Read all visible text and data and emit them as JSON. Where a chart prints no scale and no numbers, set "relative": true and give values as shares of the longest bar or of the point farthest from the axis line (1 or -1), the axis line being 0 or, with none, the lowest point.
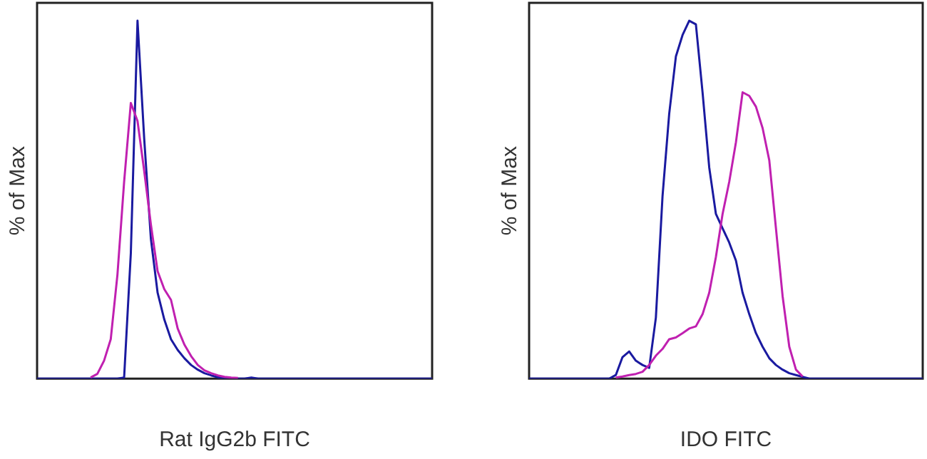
{
  "chart_data": [
    {
      "type": "line",
      "relative": true,
      "xlabel": "Rat IgG2b FITC",
      "ylabel": "% of Max",
      "grid": false,
      "legend": false,
      "marker": "none",
      "line_style": "solid",
      "categories": [
        null,
        null,
        null,
        null,
        null,
        null,
        null,
        null,
        null,
        null,
        null,
        null,
        null,
        null,
        null,
        null,
        null,
        null,
        null,
        null,
        null,
        null,
        null,
        null,
        null,
        null,
        null,
        null,
        null,
        null,
        null,
        null,
        null,
        null,
        null,
        null,
        null,
        null,
        null,
        null,
        null,
        null,
        null,
        null,
        null,
        null,
        null,
        null,
        null,
        null,
        null,
        null,
        null,
        null,
        null,
        null,
        null,
        null,
        null,
        null
      ],
      "series": [
        {
          "color": "#c020b0",
          "values": [
            null,
            null,
            null,
            null,
            null,
            null,
            null,
            null,
            0.003,
            0.013,
            0.05,
            0.11,
            0.29,
            0.55,
            0.77,
            0.72,
            0.58,
            0.43,
            0.3,
            0.25,
            0.22,
            0.14,
            0.095,
            0.063,
            0.038,
            0.023,
            0.015,
            0.009,
            0.005,
            0.003,
            0.002,
            null,
            null,
            null,
            null,
            null,
            null,
            null,
            null,
            null,
            null,
            null,
            null,
            null,
            null,
            null,
            null,
            null,
            null,
            null,
            null,
            null,
            null,
            null,
            null,
            null,
            null,
            null,
            null,
            null
          ]
        },
        {
          "color": "#1a1aa0",
          "values": [
            0,
            0,
            0,
            0,
            0,
            0,
            0,
            0,
            0,
            0,
            0,
            0,
            0,
            0.003,
            0.35,
            1,
            0.67,
            0.39,
            0.24,
            0.165,
            0.11,
            0.08,
            0.057,
            0.038,
            0.025,
            0.015,
            0.009,
            0.004,
            0,
            0,
            0,
            0,
            0.003,
            0,
            0,
            0,
            0,
            0,
            0,
            0,
            0,
            0,
            0,
            0,
            0,
            0,
            0,
            0,
            0,
            0,
            0,
            0,
            0,
            0,
            0,
            0,
            0,
            0,
            0,
            0
          ]
        }
      ]
    },
    {
      "type": "line",
      "relative": true,
      "xlabel": "IDO FITC",
      "ylabel": "% of Max",
      "grid": false,
      "legend": false,
      "marker": "none",
      "line_style": "solid",
      "categories": [
        null,
        null,
        null,
        null,
        null,
        null,
        null,
        null,
        null,
        null,
        null,
        null,
        null,
        null,
        null,
        null,
        null,
        null,
        null,
        null,
        null,
        null,
        null,
        null,
        null,
        null,
        null,
        null,
        null,
        null,
        null,
        null,
        null,
        null,
        null,
        null,
        null,
        null,
        null,
        null,
        null,
        null,
        null,
        null,
        null,
        null,
        null,
        null,
        null,
        null,
        null,
        null,
        null,
        null,
        null,
        null,
        null,
        null,
        null,
        null
      ],
      "series": [
        {
          "color": "#c020b0",
          "values": [
            null,
            null,
            null,
            null,
            null,
            null,
            null,
            null,
            null,
            null,
            null,
            null,
            null,
            0.003,
            0.006,
            0.01,
            0.013,
            0.019,
            0.038,
            0.064,
            0.083,
            0.11,
            0.115,
            0.127,
            0.14,
            0.146,
            0.18,
            0.24,
            0.34,
            0.46,
            0.55,
            0.66,
            0.8,
            0.79,
            0.76,
            0.7,
            0.61,
            0.42,
            0.23,
            0.089,
            0.025,
            0.006,
            null,
            null,
            null,
            null,
            null,
            null,
            null,
            null,
            null,
            null,
            null,
            null,
            null,
            null,
            null,
            null,
            null,
            null
          ]
        },
        {
          "color": "#1a1aa0",
          "values": [
            0,
            0,
            0,
            0,
            0,
            0,
            0,
            0,
            0,
            0,
            0,
            0,
            0,
            0.01,
            0.06,
            0.076,
            0.05,
            0.038,
            0.03,
            0.17,
            0.51,
            0.74,
            0.9,
            0.96,
            1,
            0.99,
            0.8,
            0.59,
            0.46,
            0.42,
            0.38,
            0.33,
            0.24,
            0.18,
            0.127,
            0.089,
            0.057,
            0.038,
            0.025,
            0.015,
            0.01,
            0.005,
            0,
            0,
            0,
            0,
            0,
            0,
            0,
            0,
            0,
            0,
            0,
            0,
            0,
            0,
            0,
            0,
            0,
            0
          ]
        }
      ]
    }
  ]
}
